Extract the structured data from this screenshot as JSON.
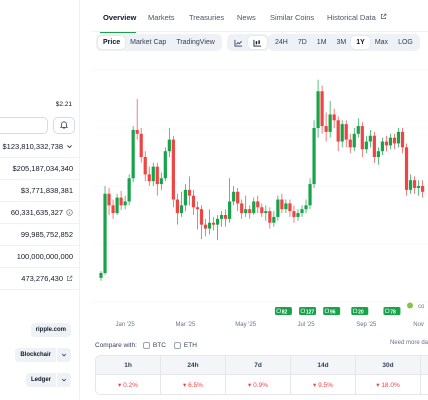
{
  "colors": {
    "up": "#16a34a",
    "down": "#ef4444",
    "accent": "#16a34a",
    "text_muted": "#64748b",
    "bg_soft": "#eef1f5"
  },
  "sidebar": {
    "price_top": "$2.21",
    "rows": [
      {
        "value": "$123,810,332,738",
        "icon": "chevron-down-icon"
      },
      {
        "value": "$205,187,034,340",
        "icon": ""
      },
      {
        "value": "$3,771,838,381",
        "icon": ""
      },
      {
        "value": "60,331,635,327",
        "icon": "info-icon"
      },
      {
        "value": "99,985,752,852",
        "icon": ""
      },
      {
        "value": "100,000,000,000",
        "icon": ""
      },
      {
        "value": "473,276,430",
        "icon": "external-link-icon"
      }
    ],
    "website": "ripple.com",
    "explorer_1": "Blockchair",
    "explorer_2": "Ledger"
  },
  "nav": {
    "tabs": [
      "Overview",
      "Markets",
      "Treasuries",
      "News",
      "Similar Coins",
      "Historical Data"
    ],
    "active": "Overview"
  },
  "toolbar": {
    "views": [
      "Price",
      "Market Cap",
      "TradingView"
    ],
    "active_view": "Price",
    "chart_types": [
      "line-chart-icon",
      "candlestick-icon"
    ],
    "active_chart_type": "candlestick-icon",
    "ranges": [
      "24H",
      "7D",
      "1M",
      "3M",
      "1Y",
      "Max",
      "LOG"
    ],
    "active_range": "1Y"
  },
  "chart_data": {
    "type": "candlestick",
    "price_axis_visible": false,
    "x_tick_labels": [
      "Jan '25",
      "Mar '25",
      "May '25",
      "Jul '25",
      "Sep '25",
      "Nov"
    ],
    "x_tick_index": [
      6,
      21,
      36,
      51,
      66,
      79
    ],
    "price_range": [
      1.3,
      3.7
    ],
    "candles": [
      {
        "o": 1.55,
        "c": 1.6,
        "h": 1.62,
        "l": 1.52
      },
      {
        "o": 1.6,
        "c": 2.42,
        "h": 2.5,
        "l": 1.58
      },
      {
        "o": 2.42,
        "c": 2.3,
        "h": 2.48,
        "l": 2.2
      },
      {
        "o": 2.3,
        "c": 2.22,
        "h": 2.36,
        "l": 2.16
      },
      {
        "o": 2.22,
        "c": 2.38,
        "h": 2.42,
        "l": 2.2
      },
      {
        "o": 2.38,
        "c": 2.3,
        "h": 2.45,
        "l": 2.25
      },
      {
        "o": 2.3,
        "c": 2.34,
        "h": 2.4,
        "l": 2.26
      },
      {
        "o": 2.34,
        "c": 2.58,
        "h": 2.62,
        "l": 2.3
      },
      {
        "o": 2.58,
        "c": 3.08,
        "h": 3.12,
        "l": 2.54
      },
      {
        "o": 3.08,
        "c": 3.04,
        "h": 3.4,
        "l": 2.98
      },
      {
        "o": 3.04,
        "c": 2.8,
        "h": 3.1,
        "l": 2.74
      },
      {
        "o": 2.8,
        "c": 2.62,
        "h": 2.86,
        "l": 2.55
      },
      {
        "o": 2.62,
        "c": 2.55,
        "h": 2.7,
        "l": 2.5
      },
      {
        "o": 2.55,
        "c": 2.7,
        "h": 2.74,
        "l": 2.5
      },
      {
        "o": 2.7,
        "c": 2.52,
        "h": 2.74,
        "l": 2.4
      },
      {
        "o": 2.52,
        "c": 2.58,
        "h": 2.64,
        "l": 2.46
      },
      {
        "o": 2.58,
        "c": 2.86,
        "h": 2.9,
        "l": 2.55
      },
      {
        "o": 2.86,
        "c": 2.98,
        "h": 3.1,
        "l": 2.8
      },
      {
        "o": 2.98,
        "c": 2.36,
        "h": 3.02,
        "l": 2.28
      },
      {
        "o": 2.36,
        "c": 2.22,
        "h": 2.42,
        "l": 2.1
      },
      {
        "o": 2.22,
        "c": 2.3,
        "h": 2.44,
        "l": 2.18
      },
      {
        "o": 2.3,
        "c": 2.46,
        "h": 2.52,
        "l": 2.24
      },
      {
        "o": 2.46,
        "c": 2.4,
        "h": 2.6,
        "l": 2.3
      },
      {
        "o": 2.4,
        "c": 2.28,
        "h": 2.46,
        "l": 2.2
      },
      {
        "o": 2.28,
        "c": 2.26,
        "h": 2.34,
        "l": 2.05
      },
      {
        "o": 2.26,
        "c": 2.1,
        "h": 2.3,
        "l": 1.95
      },
      {
        "o": 2.1,
        "c": 2.06,
        "h": 2.16,
        "l": 1.98
      },
      {
        "o": 2.06,
        "c": 2.12,
        "h": 2.26,
        "l": 2.0
      },
      {
        "o": 2.12,
        "c": 2.1,
        "h": 2.18,
        "l": 2.04
      },
      {
        "o": 2.1,
        "c": 2.16,
        "h": 2.2,
        "l": 1.94
      },
      {
        "o": 2.16,
        "c": 2.2,
        "h": 2.24,
        "l": 2.08
      },
      {
        "o": 2.2,
        "c": 2.16,
        "h": 2.26,
        "l": 2.08
      },
      {
        "o": 2.16,
        "c": 2.34,
        "h": 2.58,
        "l": 2.12
      },
      {
        "o": 2.34,
        "c": 2.44,
        "h": 2.5,
        "l": 2.3
      },
      {
        "o": 2.44,
        "c": 2.32,
        "h": 2.48,
        "l": 2.24
      },
      {
        "o": 2.32,
        "c": 2.22,
        "h": 2.36,
        "l": 2.16
      },
      {
        "o": 2.22,
        "c": 2.26,
        "h": 2.4,
        "l": 2.18
      },
      {
        "o": 2.26,
        "c": 2.22,
        "h": 2.3,
        "l": 2.16
      },
      {
        "o": 2.22,
        "c": 2.34,
        "h": 2.38,
        "l": 2.2
      },
      {
        "o": 2.34,
        "c": 2.28,
        "h": 2.4,
        "l": 2.22
      },
      {
        "o": 2.28,
        "c": 2.22,
        "h": 2.32,
        "l": 2.18
      },
      {
        "o": 2.22,
        "c": 2.24,
        "h": 2.3,
        "l": 2.14
      },
      {
        "o": 2.24,
        "c": 2.12,
        "h": 2.28,
        "l": 2.06
      },
      {
        "o": 2.12,
        "c": 2.18,
        "h": 2.24,
        "l": 2.08
      },
      {
        "o": 2.18,
        "c": 2.36,
        "h": 2.4,
        "l": 2.14
      },
      {
        "o": 2.36,
        "c": 2.26,
        "h": 2.42,
        "l": 2.22
      },
      {
        "o": 2.26,
        "c": 2.32,
        "h": 2.36,
        "l": 2.22
      },
      {
        "o": 2.32,
        "c": 2.24,
        "h": 2.36,
        "l": 2.18
      },
      {
        "o": 2.24,
        "c": 2.18,
        "h": 2.3,
        "l": 2.12
      },
      {
        "o": 2.18,
        "c": 2.22,
        "h": 2.26,
        "l": 2.14
      },
      {
        "o": 2.22,
        "c": 2.26,
        "h": 2.3,
        "l": 2.18
      },
      {
        "o": 2.26,
        "c": 2.3,
        "h": 2.36,
        "l": 2.22
      },
      {
        "o": 2.3,
        "c": 2.52,
        "h": 2.58,
        "l": 2.26
      },
      {
        "o": 2.52,
        "c": 3.1,
        "h": 3.18,
        "l": 2.48
      },
      {
        "o": 3.1,
        "c": 3.48,
        "h": 3.6,
        "l": 3.0
      },
      {
        "o": 3.48,
        "c": 3.12,
        "h": 3.54,
        "l": 3.04
      },
      {
        "o": 3.12,
        "c": 3.06,
        "h": 3.26,
        "l": 2.96
      },
      {
        "o": 3.06,
        "c": 3.24,
        "h": 3.38,
        "l": 3.0
      },
      {
        "o": 3.24,
        "c": 3.18,
        "h": 3.3,
        "l": 3.1
      },
      {
        "o": 3.18,
        "c": 2.96,
        "h": 3.22,
        "l": 2.86
      },
      {
        "o": 2.96,
        "c": 3.14,
        "h": 3.18,
        "l": 2.9
      },
      {
        "o": 3.14,
        "c": 2.98,
        "h": 3.18,
        "l": 2.9
      },
      {
        "o": 2.98,
        "c": 2.9,
        "h": 3.04,
        "l": 2.84
      },
      {
        "o": 2.9,
        "c": 3.04,
        "h": 3.1,
        "l": 2.86
      },
      {
        "o": 3.04,
        "c": 3.12,
        "h": 3.2,
        "l": 3.0
      },
      {
        "o": 3.12,
        "c": 2.88,
        "h": 3.16,
        "l": 2.8
      },
      {
        "o": 2.88,
        "c": 2.96,
        "h": 3.02,
        "l": 2.84
      },
      {
        "o": 2.96,
        "c": 3.02,
        "h": 3.08,
        "l": 2.9
      },
      {
        "o": 3.02,
        "c": 2.8,
        "h": 3.06,
        "l": 2.74
      },
      {
        "o": 2.8,
        "c": 2.86,
        "h": 2.9,
        "l": 2.72
      },
      {
        "o": 2.86,
        "c": 2.96,
        "h": 3.0,
        "l": 2.82
      },
      {
        "o": 2.96,
        "c": 2.92,
        "h": 3.02,
        "l": 2.86
      },
      {
        "o": 2.92,
        "c": 3.0,
        "h": 3.04,
        "l": 2.88
      },
      {
        "o": 3.0,
        "c": 2.94,
        "h": 3.04,
        "l": 2.88
      },
      {
        "o": 2.94,
        "c": 3.06,
        "h": 3.1,
        "l": 2.9
      },
      {
        "o": 3.06,
        "c": 2.9,
        "h": 3.1,
        "l": 2.84
      },
      {
        "o": 2.9,
        "c": 2.46,
        "h": 2.94,
        "l": 2.4
      },
      {
        "o": 2.46,
        "c": 2.56,
        "h": 2.62,
        "l": 2.42
      },
      {
        "o": 2.56,
        "c": 2.48,
        "h": 2.6,
        "l": 2.42
      },
      {
        "o": 2.48,
        "c": 2.5,
        "h": 2.56,
        "l": 2.4
      },
      {
        "o": 2.5,
        "c": 2.44,
        "h": 2.56,
        "l": 2.38
      }
    ],
    "event_badges": [
      {
        "label": "82",
        "index": 45
      },
      {
        "label": "127",
        "index": 51
      },
      {
        "label": "96",
        "index": 57
      },
      {
        "label": "20",
        "index": 64
      },
      {
        "label": "78",
        "index": 72
      }
    ],
    "watermark": "co"
  },
  "compare": {
    "label": "Compare with:",
    "options": [
      "BTC",
      "ETH"
    ],
    "need_more": "Need more da"
  },
  "performance": {
    "headers": [
      "1h",
      "24h",
      "7d",
      "14d",
      "30d"
    ],
    "values": [
      "0.2%",
      "6.5%",
      "0.9%",
      "9.5%",
      "18.0%"
    ]
  }
}
